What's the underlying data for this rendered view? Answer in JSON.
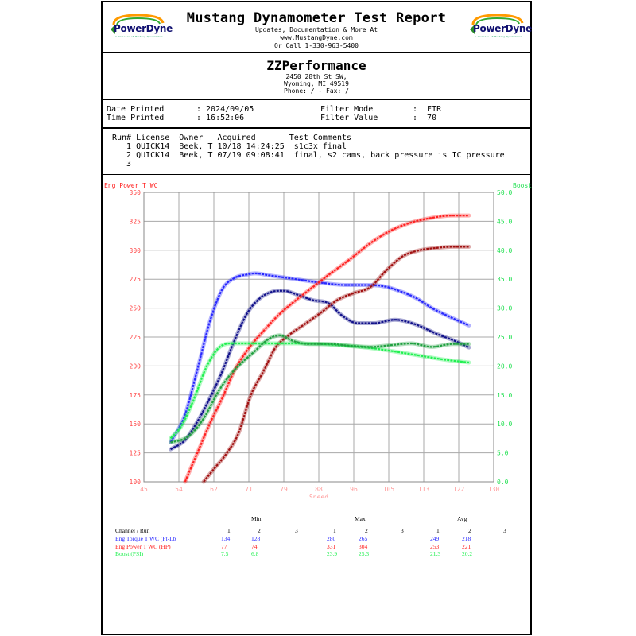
{
  "header": {
    "title": "Mustang Dynamometer Test Report",
    "line1": "Updates, Documentation & More At",
    "line2": "www.MustangDyne.com",
    "line3": "Or Call 1-330-963-5400",
    "logo_text": "PowerDyne",
    "logo_sub": "A division of Mustang Dynamometer"
  },
  "shop": {
    "name": "ZZPerformance",
    "address1": "2450 28th St SW,",
    "address2": "Wyoming, MI  49519",
    "phone": "Phone:  /  - Fax:  /"
  },
  "meta": {
    "date_label": "Date Printed",
    "date_value": ": 2024/09/05",
    "time_label": "Time Printed",
    "time_value": ": 16:52:06",
    "filter_mode_label": "Filter Mode",
    "filter_mode_value": ":  FIR",
    "filter_value_label": "Filter Value",
    "filter_value_value": ":  70"
  },
  "runs": {
    "header": "Run# License  Owner   Acquired       Test Comments",
    "rows": [
      "   1 QUICK14  Beek, T 10/18 14:24:25  s1c3x final",
      "   2 QUICK14  Beek, T 07/19 09:08:41  final, s2 cams, back pressure is IC pressure",
      "   3"
    ]
  },
  "colors": {
    "power": "#ff2020",
    "power_dark": "#a01010",
    "torque": "#2828ff",
    "torque_dark": "#10108a",
    "boost": "#20f050",
    "boost_dark": "#20a040"
  },
  "chart_data": {
    "type": "line",
    "title": "",
    "xlabel": "Speed",
    "ylabel_left": "Eng Power T WC",
    "ylabel_right": "Boost",
    "xlim": [
      45,
      130
    ],
    "x_ticks": [
      "45",
      "54",
      "62",
      "71",
      "79",
      "88",
      "96",
      "105",
      "113",
      "122",
      "130"
    ],
    "ylim_left": [
      100,
      350
    ],
    "y_ticks_left": [
      "100",
      "125",
      "150",
      "175",
      "200",
      "225",
      "250",
      "275",
      "300",
      "325",
      "350"
    ],
    "ylim_right": [
      0,
      50
    ],
    "y_ticks_right": [
      "0.0",
      "5.0",
      "10.0",
      "15.0",
      "20.0",
      "25.0",
      "30.0",
      "35.0",
      "40.0",
      "45.0",
      "50.0"
    ],
    "grid": true,
    "series": [
      {
        "name": "Eng Torque T WC (Ft-Lb) run 1",
        "color": "#2828ff",
        "axis": "left",
        "x": [
          51.5,
          55,
          58,
          61,
          64,
          67,
          70,
          72,
          76,
          82,
          88,
          94,
          99,
          103,
          107,
          111,
          115,
          119,
          124
        ],
        "y": [
          134,
          158,
          197,
          238,
          266,
          276,
          279,
          280,
          278,
          275,
          272,
          270,
          270,
          269,
          265,
          259,
          250,
          243,
          235
        ]
      },
      {
        "name": "Eng Torque T WC (Ft-Lb) run 2",
        "color": "#10108a",
        "axis": "left",
        "x": [
          51.5,
          55,
          58,
          61,
          64,
          67,
          70,
          73,
          76,
          79,
          82,
          86,
          90,
          93,
          97,
          101,
          106,
          111,
          116,
          121,
          124
        ],
        "y": [
          128,
          136,
          152,
          172,
          195,
          222,
          245,
          258,
          264,
          265,
          262,
          257,
          254,
          244,
          237,
          237,
          240,
          236,
          228,
          221,
          216
        ]
      },
      {
        "name": "Eng Power T WC (HP) run 1",
        "color": "#ff2020",
        "axis": "left",
        "x": [
          55,
          58,
          61,
          64,
          67,
          70,
          74,
          78,
          82,
          86,
          90,
          95,
          100,
          105,
          110,
          115,
          120,
          124
        ],
        "y": [
          100,
          125,
          150,
          172,
          196,
          213,
          230,
          245,
          257,
          268,
          279,
          292,
          306,
          317,
          324,
          328,
          330,
          330
        ]
      },
      {
        "name": "Eng Power T WC (HP) run 2",
        "color": "#a01010",
        "axis": "left",
        "x": [
          59.5,
          62,
          65,
          68,
          71,
          74,
          77,
          80,
          84,
          88,
          92,
          96,
          100,
          104,
          108,
          112,
          116,
          120,
          124
        ],
        "y": [
          100,
          111,
          124,
          142,
          175,
          195,
          216,
          226,
          236,
          246,
          257,
          263,
          268,
          283,
          295,
          300,
          302,
          303,
          303
        ]
      },
      {
        "name": "Boost (PSI) run 1",
        "color": "#20f050",
        "axis": "right",
        "x": [
          51.5,
          54,
          57,
          60,
          63,
          66,
          70,
          76,
          82,
          88,
          94,
          100,
          106,
          112,
          118,
          124
        ],
        "y": [
          7.5,
          9.5,
          14,
          19.5,
          23.0,
          23.9,
          23.9,
          23.9,
          23.9,
          23.8,
          23.5,
          23.1,
          22.5,
          21.8,
          21.1,
          20.6
        ]
      },
      {
        "name": "Boost (PSI) run 2",
        "color": "#20a040",
        "axis": "right",
        "x": [
          51.5,
          55,
          57,
          60,
          63,
          66,
          69,
          72,
          75,
          78,
          81,
          85,
          90,
          95,
          100,
          105,
          110,
          115,
          120,
          124
        ],
        "y": [
          6.8,
          7.5,
          8.6,
          11.5,
          15.5,
          18.5,
          20.7,
          22.6,
          24.5,
          25.3,
          24.4,
          23.8,
          23.8,
          23.5,
          23.3,
          23.6,
          23.9,
          23.3,
          23.8,
          23.8
        ]
      }
    ]
  },
  "stats": {
    "col_heads": [
      "Min",
      "Max",
      "Avg"
    ],
    "channel_label": "Channel / Run",
    "run_numbers": [
      "1",
      "2",
      "3"
    ],
    "rows": [
      {
        "label": "Eng Torque T WC (Ft-Lb",
        "color": "#2828ff",
        "min": [
          "134",
          "128"
        ],
        "max": [
          "280",
          "265"
        ],
        "avg": [
          "249",
          "218"
        ]
      },
      {
        "label": "Eng Power T WC (HP)",
        "color": "#ff2020",
        "min": [
          "77",
          "74"
        ],
        "max": [
          "331",
          "304"
        ],
        "avg": [
          "253",
          "221"
        ]
      },
      {
        "label": "Boost (PSI)",
        "color": "#20f050",
        "min": [
          "7.5",
          "6.8"
        ],
        "max": [
          "23.9",
          "25.3"
        ],
        "avg": [
          "21.3",
          "20.2"
        ]
      }
    ]
  }
}
